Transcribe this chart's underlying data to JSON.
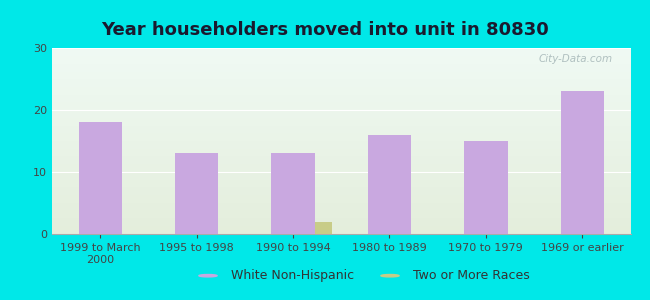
{
  "title": "Year householders moved into unit in 80830",
  "categories": [
    "1999 to March\n2000",
    "1995 to 1998",
    "1990 to 1994",
    "1980 to 1989",
    "1970 to 1979",
    "1969 or earlier"
  ],
  "white_values": [
    18,
    13,
    13,
    16,
    15,
    23
  ],
  "two_more_values": [
    0,
    0,
    2,
    0,
    0,
    0
  ],
  "two_more_index": 2,
  "white_color": "#c9a8e0",
  "two_more_color": "#c8cc88",
  "ylim": [
    0,
    30
  ],
  "yticks": [
    0,
    10,
    20,
    30
  ],
  "background_outer": "#00e8e8",
  "background_inner_top": "#f0faf4",
  "background_inner_bottom": "#e4eedc",
  "title_fontsize": 13,
  "tick_fontsize": 8,
  "legend_fontsize": 9,
  "watermark": "City-Data.com",
  "bar_width": 0.45,
  "two_more_bar_width": 0.18
}
